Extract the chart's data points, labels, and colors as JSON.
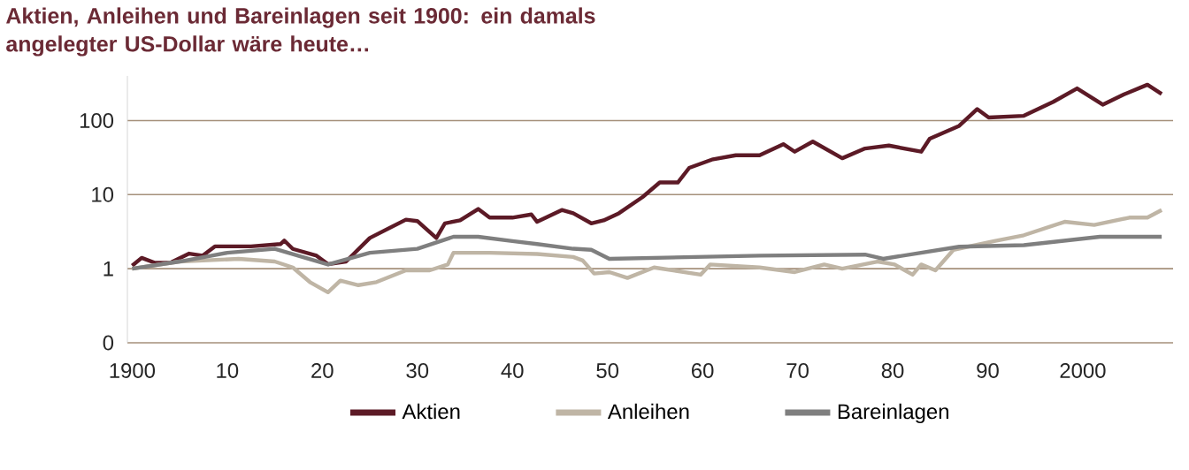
{
  "chart_data": {
    "type": "line",
    "title": "Aktien, Anleihen und Bareinlagen seit 1900: ein damals angelegter US-Dollar wäre heute…",
    "log": "y",
    "grid": "y",
    "legend": "bottom",
    "marker": "none",
    "line_style": "solid",
    "xlim": [
      1899.5,
      2009.5
    ],
    "xticks": [
      1900,
      {
        "value": 1910,
        "label": "10"
      },
      {
        "value": 1920,
        "label": "20"
      },
      {
        "value": 1930,
        "label": "30"
      },
      {
        "value": 1940,
        "label": "40"
      },
      {
        "value": 1950,
        "label": "50"
      },
      {
        "value": 1960,
        "label": "60"
      },
      {
        "value": 1970,
        "label": "70"
      },
      {
        "value": 1980,
        "label": "80"
      },
      {
        "value": 1990,
        "label": "90"
      },
      2000
    ],
    "ylim": [
      0.1,
      400
    ],
    "yticks": [
      {
        "value": 0.1,
        "label": "0"
      },
      1,
      10,
      100
    ],
    "series": [
      {
        "name": "Aktien",
        "color": "#5c1a26",
        "x": [
          1900,
          1901,
          1902.4,
          1904,
          1906,
          1907.4,
          1908.7,
          1912.5,
          1915.6,
          1916,
          1916.9,
          1919.4,
          1920.6,
          1922.5,
          1925,
          1928.8,
          1930,
          1932,
          1932.9,
          1934.5,
          1936.4,
          1937.6,
          1940,
          1942,
          1942.6,
          1945.2,
          1946.4,
          1948.3,
          1949.6,
          1951.2,
          1953.7,
          1955.5,
          1957.4,
          1958.6,
          1961.1,
          1963.5,
          1966,
          1968.5,
          1969.7,
          1971.6,
          1974.7,
          1977.1,
          1979.6,
          1983,
          1983.9,
          1987,
          1988.9,
          1990.1,
          1993.8,
          1996.9,
          1999.4,
          2002.1,
          2004.3,
          2006.8,
          2008.3
        ],
        "values": [
          1.1,
          1.4,
          1.2,
          1.2,
          1.6,
          1.5,
          2.0,
          2.0,
          2.15,
          2.4,
          1.85,
          1.5,
          1.15,
          1.25,
          2.6,
          4.6,
          4.4,
          2.6,
          4.1,
          4.5,
          6.4,
          4.9,
          4.9,
          5.4,
          4.3,
          6.2,
          5.6,
          4.1,
          4.5,
          5.6,
          9.3,
          14.6,
          14.6,
          23,
          30,
          34,
          34,
          48,
          38,
          52,
          31,
          42,
          46,
          38,
          57,
          85,
          143,
          110,
          116,
          179,
          272,
          164,
          225,
          305,
          229
        ]
      },
      {
        "name": "Anleihen",
        "color": "#bfb5a5",
        "x": [
          1900,
          1905,
          1911.2,
          1915,
          1916.9,
          1918.7,
          1920.6,
          1921.9,
          1923.8,
          1925.7,
          1928.8,
          1931.3,
          1933.2,
          1933.8,
          1937.6,
          1942.6,
          1946.4,
          1947.4,
          1948.6,
          1950.2,
          1952.1,
          1954.9,
          1959.8,
          1960.8,
          1966,
          1969.7,
          1972.8,
          1974.7,
          1978.4,
          1980.2,
          1982.1,
          1983,
          1984.5,
          1986.4,
          1990.7,
          1993.8,
          1998.1,
          2001.2,
          2004.9,
          2006.8,
          2008.3
        ],
        "values": [
          1.0,
          1.25,
          1.36,
          1.25,
          1.04,
          0.66,
          0.48,
          0.69,
          0.6,
          0.66,
          0.95,
          0.95,
          1.14,
          1.64,
          1.64,
          1.58,
          1.44,
          1.29,
          0.86,
          0.9,
          0.75,
          1.04,
          0.83,
          1.14,
          1.04,
          0.9,
          1.14,
          1.0,
          1.25,
          1.14,
          0.83,
          1.14,
          0.95,
          1.8,
          2.36,
          2.83,
          4.3,
          3.9,
          4.9,
          4.9,
          6.2
        ]
      },
      {
        "name": "Bareinlagen",
        "color": "#7f7f7f",
        "x": [
          1900,
          1905,
          1910,
          1915,
          1920.6,
          1925,
          1930,
          1933.8,
          1936.4,
          1940,
          1942.6,
          1946.4,
          1948.3,
          1950.2,
          1966,
          1977.1,
          1979,
          1987,
          1993.8,
          2001.8,
          2008.3
        ],
        "values": [
          1.0,
          1.25,
          1.64,
          1.86,
          1.14,
          1.64,
          1.86,
          2.7,
          2.7,
          2.36,
          2.15,
          1.86,
          1.8,
          1.36,
          1.5,
          1.55,
          1.36,
          1.98,
          2.08,
          2.7,
          2.7
        ]
      }
    ]
  }
}
